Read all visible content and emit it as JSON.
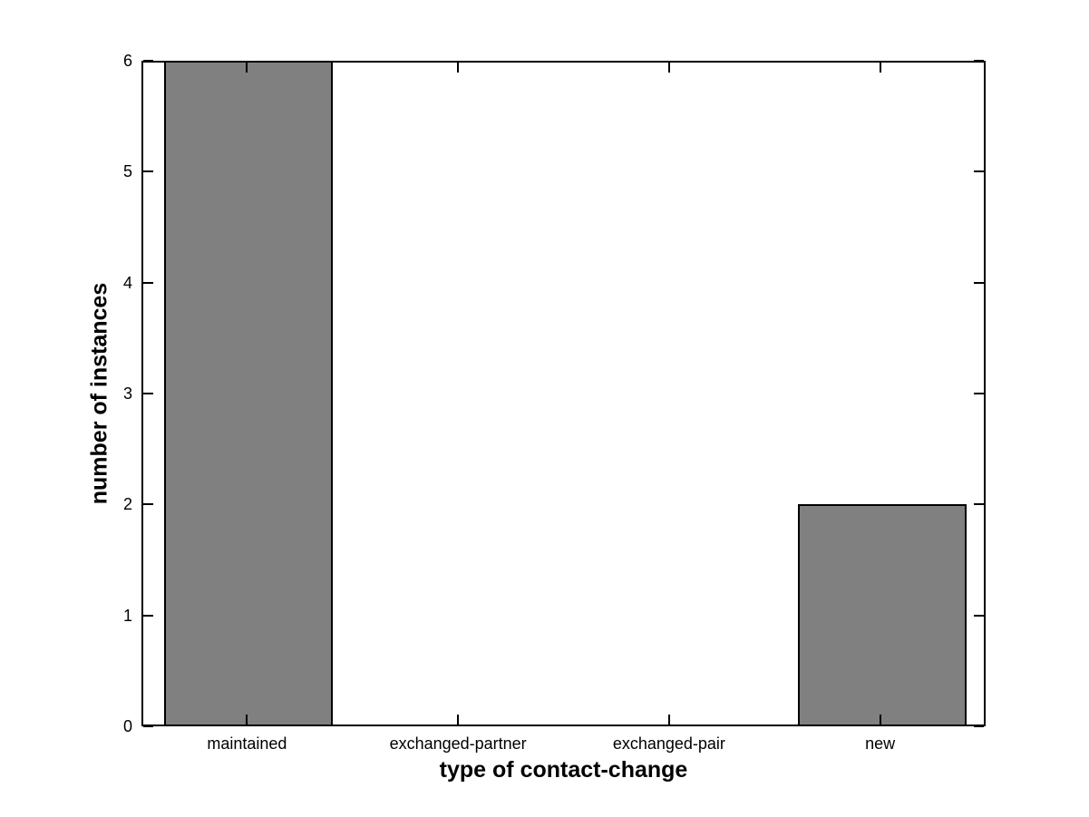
{
  "chart_data": {
    "type": "bar",
    "title": "",
    "xlabel": "type of contact-change",
    "ylabel": "number of instances",
    "categories": [
      "maintained",
      "exchanged-partner",
      "exchanged-pair",
      "new"
    ],
    "values": [
      6,
      0,
      0,
      2
    ],
    "ylim": [
      0,
      6
    ],
    "yticks": [
      0,
      1,
      2,
      3,
      4,
      5,
      6
    ],
    "bar_color": "#808080",
    "bar_edge_color": "#000000",
    "axis_color": "#000000",
    "background_color": "#ffffff",
    "bar_width_fraction": 0.8,
    "grid": false,
    "legend": null,
    "tick_direction": "in",
    "box": true
  }
}
